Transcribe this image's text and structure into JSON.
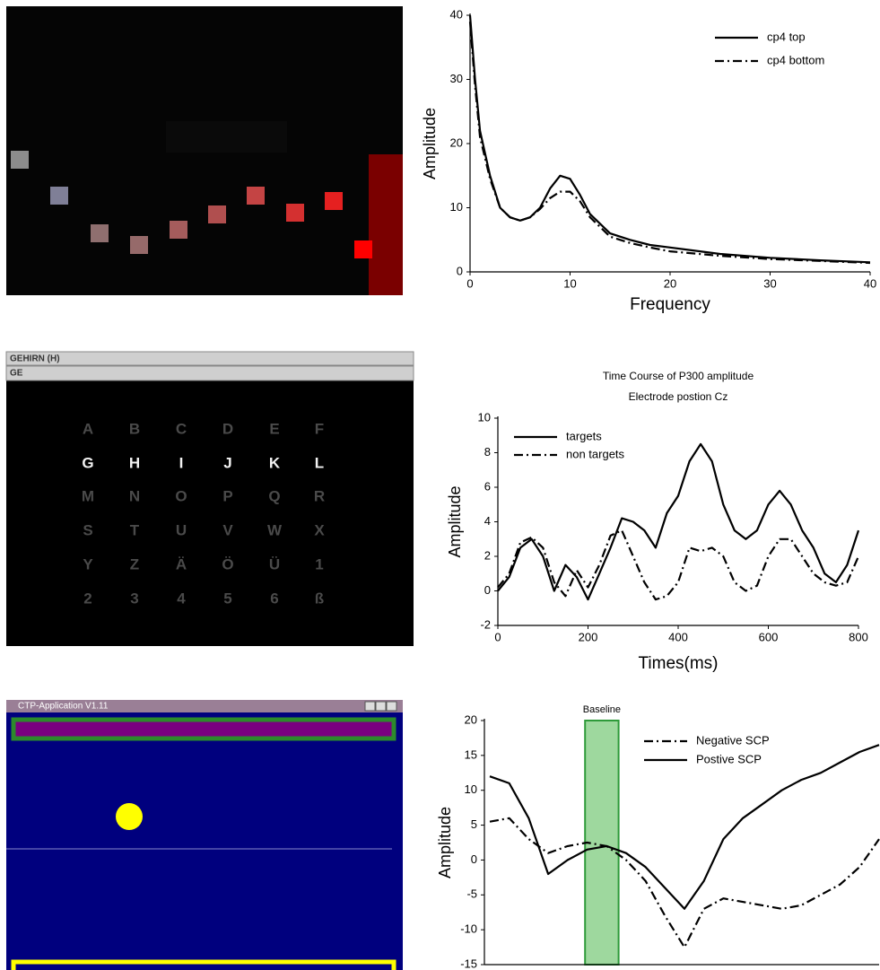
{
  "chart_data": [
    {
      "type": "line",
      "xlabel": "Frequency",
      "ylabel": "Amplitude",
      "x": [
        0,
        0.5,
        1,
        2,
        3,
        4,
        5,
        6,
        7,
        8,
        9,
        10,
        11,
        12,
        14,
        16,
        18,
        20,
        25,
        30,
        35,
        40
      ],
      "series": [
        {
          "name": "cp4 top",
          "color": "#000000",
          "linestyle": "solid",
          "values": [
            40,
            30,
            22,
            15,
            10,
            8.5,
            8,
            8.5,
            10,
            13,
            15,
            14.5,
            12,
            9,
            6,
            5,
            4.2,
            3.8,
            2.8,
            2.2,
            1.8,
            1.5
          ]
        },
        {
          "name": "cp4 bottom",
          "color": "#000000",
          "linestyle": "dashdot",
          "values": [
            39,
            29,
            21,
            14.5,
            10,
            8.5,
            8,
            8.5,
            9.8,
            11.5,
            12.5,
            12.5,
            11,
            8.5,
            5.5,
            4.5,
            3.8,
            3.2,
            2.5,
            2,
            1.7,
            1.4
          ]
        }
      ],
      "xlim": [
        0,
        40
      ],
      "xticks": [
        0,
        10,
        20,
        30,
        40
      ],
      "ylim": [
        0,
        40
      ],
      "yticks": [
        0,
        10,
        20,
        30,
        40
      ],
      "legend": "upper right"
    },
    {
      "type": "line",
      "title": "Time Course of P300 amplitude",
      "subtitle": "Electrode postion Cz",
      "xlabel": "Times(ms)",
      "ylabel": "Amplitude",
      "x": [
        0,
        25,
        50,
        75,
        100,
        125,
        150,
        175,
        200,
        225,
        250,
        275,
        300,
        325,
        350,
        375,
        400,
        425,
        450,
        475,
        500,
        525,
        550,
        575,
        600,
        625,
        650,
        675,
        700,
        725,
        750,
        775,
        800
      ],
      "series": [
        {
          "name": "targets",
          "color": "#000000",
          "linestyle": "solid",
          "values": [
            0,
            0.8,
            2.5,
            3,
            2,
            0,
            1.5,
            0.8,
            -0.5,
            1,
            2.5,
            4.2,
            4,
            3.5,
            2.5,
            4.5,
            5.5,
            7.5,
            8.5,
            7.5,
            5,
            3.5,
            3,
            3.5,
            5,
            5.8,
            5,
            3.5,
            2.5,
            1,
            0.5,
            1.5,
            3.5
          ]
        },
        {
          "name": "non targets",
          "color": "#000000",
          "linestyle": "dashdot",
          "values": [
            0.2,
            1,
            2.8,
            3.1,
            2.5,
            0.5,
            -0.3,
            1.2,
            0.2,
            1.5,
            3.2,
            3.5,
            2,
            0.5,
            -0.5,
            -0.3,
            0.5,
            2.5,
            2.3,
            2.5,
            2,
            0.5,
            0,
            0.3,
            2,
            3,
            3,
            2,
            1,
            0.5,
            0.3,
            0.5,
            2
          ]
        }
      ],
      "xlim": [
        0,
        800
      ],
      "xticks": [
        0,
        200,
        400,
        600,
        800
      ],
      "ylim": [
        -2,
        10
      ],
      "yticks": [
        -2,
        0,
        2,
        4,
        6,
        8,
        10
      ],
      "legend": "upper left"
    },
    {
      "type": "line",
      "ylabel": "Amplitude",
      "annotation": "Baseline",
      "categories": [
        null,
        null,
        null,
        null,
        null,
        null,
        null,
        null,
        null,
        null,
        null,
        null,
        null,
        null,
        null,
        null,
        null,
        null,
        null,
        null,
        null
      ],
      "series": [
        {
          "name": "Negative SCP",
          "color": "#000000",
          "linestyle": "dashdot",
          "values": [
            5.5,
            6,
            3,
            1,
            2,
            2.5,
            2,
            0,
            -3,
            -8,
            -12.5,
            -7,
            -5.5,
            -6,
            -6.5,
            -7,
            -6.5,
            -5,
            -3.5,
            -1,
            3
          ]
        },
        {
          "name": "Postive SCP",
          "color": "#000000",
          "linestyle": "solid",
          "values": [
            12,
            11,
            6,
            -2,
            0,
            1.5,
            2,
            1,
            -1,
            -4,
            -7,
            -3,
            3,
            6,
            8,
            10,
            11.5,
            12.5,
            14,
            15.5,
            16.5
          ]
        }
      ],
      "ylim": [
        -15,
        20
      ],
      "yticks": [
        -15,
        -10,
        -5,
        0,
        5,
        10,
        15,
        20
      ],
      "legend": "upper right"
    }
  ],
  "screens": {
    "speller": {
      "title_bar": "GEHIRN (H)",
      "text_bar": "GE",
      "rows": [
        [
          "A",
          "B",
          "C",
          "D",
          "E",
          "F"
        ],
        [
          "G",
          "H",
          "I",
          "J",
          "K",
          "L"
        ],
        [
          "M",
          "N",
          "O",
          "P",
          "Q",
          "R"
        ],
        [
          "S",
          "T",
          "U",
          "V",
          "W",
          "X"
        ],
        [
          "Y",
          "Z",
          "Ä",
          "Ö",
          "Ü",
          "1"
        ],
        [
          "2",
          "3",
          "4",
          "5",
          "6",
          "ß"
        ]
      ]
    },
    "ctp": {
      "window_title": "CTP-Application V1.11"
    }
  }
}
